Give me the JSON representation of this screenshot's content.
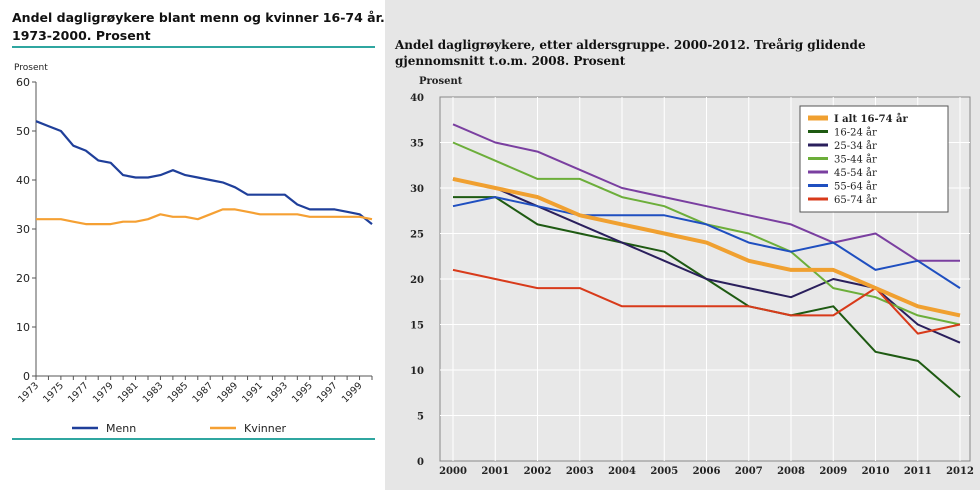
{
  "left_chart": {
    "title_line1": "Andel dagligrøykere blant menn og kvinner 16-74 år.",
    "title_line2": "1973-2000. Prosent"
  },
  "right_chart": {
    "title_line1": "Andel dagligrøykere, etter aldersgruppe. 2000-2012. Treårig glidende",
    "title_line2": "gjennomsnitt t.o.m. 2008. Prosent"
  },
  "chart_data": [
    {
      "type": "line",
      "title": "Andel dagligrøykere blant menn og kvinner 16-74 år. 1973-2000. Prosent",
      "ylabel": "Prosent",
      "ylim": [
        0,
        60
      ],
      "yticks": [
        0,
        10,
        20,
        30,
        40,
        50,
        60
      ],
      "xticks": [
        "1973",
        "1975",
        "1977",
        "1979",
        "1981",
        "1983",
        "1985",
        "1987",
        "1989",
        "1991",
        "1993",
        "1995",
        "1997",
        "1999"
      ],
      "x": [
        1973,
        1974,
        1975,
        1976,
        1977,
        1978,
        1979,
        1980,
        1981,
        1982,
        1983,
        1984,
        1985,
        1986,
        1987,
        1988,
        1989,
        1990,
        1991,
        1992,
        1993,
        1994,
        1995,
        1996,
        1997,
        1998,
        1999,
        2000
      ],
      "series": [
        {
          "name": "Menn",
          "color": "#1f3f9a",
          "values": [
            52,
            51,
            50,
            47,
            46,
            44,
            43.5,
            41,
            40.5,
            40.5,
            41,
            42,
            41,
            40.5,
            40,
            39.5,
            38.5,
            37,
            37,
            37,
            37,
            35,
            34,
            34,
            34,
            33.5,
            33,
            31
          ]
        },
        {
          "name": "Kvinner",
          "color": "#f5a033",
          "values": [
            32,
            32,
            32,
            31.5,
            31,
            31,
            31,
            31.5,
            31.5,
            32,
            33,
            32.5,
            32.5,
            32,
            33,
            34,
            34,
            33.5,
            33,
            33,
            33,
            33,
            32.5,
            32.5,
            32.5,
            32.5,
            32.5,
            32
          ]
        }
      ],
      "legend": "bottom",
      "grid": false
    },
    {
      "type": "line",
      "title": "Andel dagligrøykere, etter aldersgruppe. 2000-2012. Treårig glidende gjennomsnitt t.o.m. 2008. Prosent",
      "ylabel": "Prosent",
      "ylim": [
        0,
        40
      ],
      "yticks": [
        0,
        5,
        10,
        15,
        20,
        25,
        30,
        35,
        40
      ],
      "x": [
        "2000",
        "2001",
        "2002",
        "2003",
        "2004",
        "2005",
        "2006",
        "2007",
        "2008",
        "2009",
        "2010",
        "2011",
        "2012"
      ],
      "series": [
        {
          "name": "I alt 16-74 år",
          "color": "#f0a030",
          "width": 4,
          "values": [
            31,
            30,
            29,
            27,
            26,
            25,
            24,
            22,
            21,
            21,
            19,
            17,
            16
          ]
        },
        {
          "name": "16-24 år",
          "color": "#1e5a12",
          "width": 2,
          "values": [
            29,
            29,
            26,
            25,
            24,
            23,
            20,
            17,
            16,
            17,
            12,
            11,
            7
          ]
        },
        {
          "name": "25-34 år",
          "color": "#2a1f5c",
          "width": 2,
          "values": [
            31,
            30,
            28,
            26,
            24,
            22,
            20,
            19,
            18,
            20,
            19,
            15,
            13
          ]
        },
        {
          "name": "35-44 år",
          "color": "#6cae3a",
          "width": 2,
          "values": [
            35,
            33,
            31,
            31,
            29,
            28,
            26,
            25,
            23,
            19,
            18,
            16,
            15
          ]
        },
        {
          "name": "45-54 år",
          "color": "#7a3fa0",
          "width": 2,
          "values": [
            37,
            35,
            34,
            32,
            30,
            29,
            28,
            27,
            26,
            24,
            25,
            22,
            22
          ]
        },
        {
          "name": "55-64 år",
          "color": "#1f4fc0",
          "width": 2,
          "values": [
            28,
            29,
            28,
            27,
            27,
            27,
            26,
            24,
            23,
            24,
            21,
            22,
            19
          ]
        },
        {
          "name": "65-74 år",
          "color": "#d83a1a",
          "width": 2,
          "values": [
            21,
            20,
            19,
            19,
            17,
            17,
            17,
            17,
            16,
            16,
            19,
            14,
            15
          ]
        }
      ],
      "legend": "top-right",
      "grid": true
    }
  ]
}
